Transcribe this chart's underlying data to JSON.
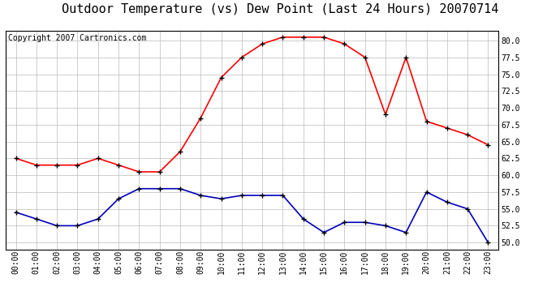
{
  "title": "Outdoor Temperature (vs) Dew Point (Last 24 Hours) 20070714",
  "copyright_text": "Copyright 2007 Cartronics.com",
  "hours": [
    "00:00",
    "01:00",
    "02:00",
    "03:00",
    "04:00",
    "05:00",
    "06:00",
    "07:00",
    "08:00",
    "09:00",
    "10:00",
    "11:00",
    "12:00",
    "13:00",
    "14:00",
    "15:00",
    "16:00",
    "17:00",
    "18:00",
    "19:00",
    "20:00",
    "21:00",
    "22:00",
    "23:00"
  ],
  "temp": [
    62.5,
    61.5,
    61.5,
    61.5,
    62.5,
    61.5,
    60.5,
    60.5,
    63.5,
    68.5,
    74.5,
    77.5,
    79.5,
    80.5,
    80.5,
    80.5,
    79.5,
    77.5,
    69.0,
    77.5,
    68.0,
    67.0,
    66.0,
    64.5
  ],
  "dew": [
    54.5,
    53.5,
    52.5,
    52.5,
    53.5,
    56.5,
    58.0,
    58.0,
    58.0,
    57.0,
    56.5,
    57.0,
    57.0,
    57.0,
    53.5,
    51.5,
    53.0,
    53.0,
    52.5,
    51.5,
    57.5,
    56.0,
    55.0,
    50.0
  ],
  "temp_color": "#ff0000",
  "dew_color": "#0000bb",
  "bg_color": "#ffffff",
  "plot_bg_color": "#ffffff",
  "grid_color": "#bbbbbb",
  "ylim_min": 49.0,
  "ylim_max": 81.5,
  "yticks": [
    50.0,
    52.5,
    55.0,
    57.5,
    60.0,
    62.5,
    65.0,
    67.5,
    70.0,
    72.5,
    75.0,
    77.5,
    80.0
  ],
  "marker": "+",
  "marker_color": "#000000",
  "marker_size": 5,
  "line_width": 1.2,
  "title_fontsize": 11,
  "tick_fontsize": 7,
  "copyright_fontsize": 7
}
